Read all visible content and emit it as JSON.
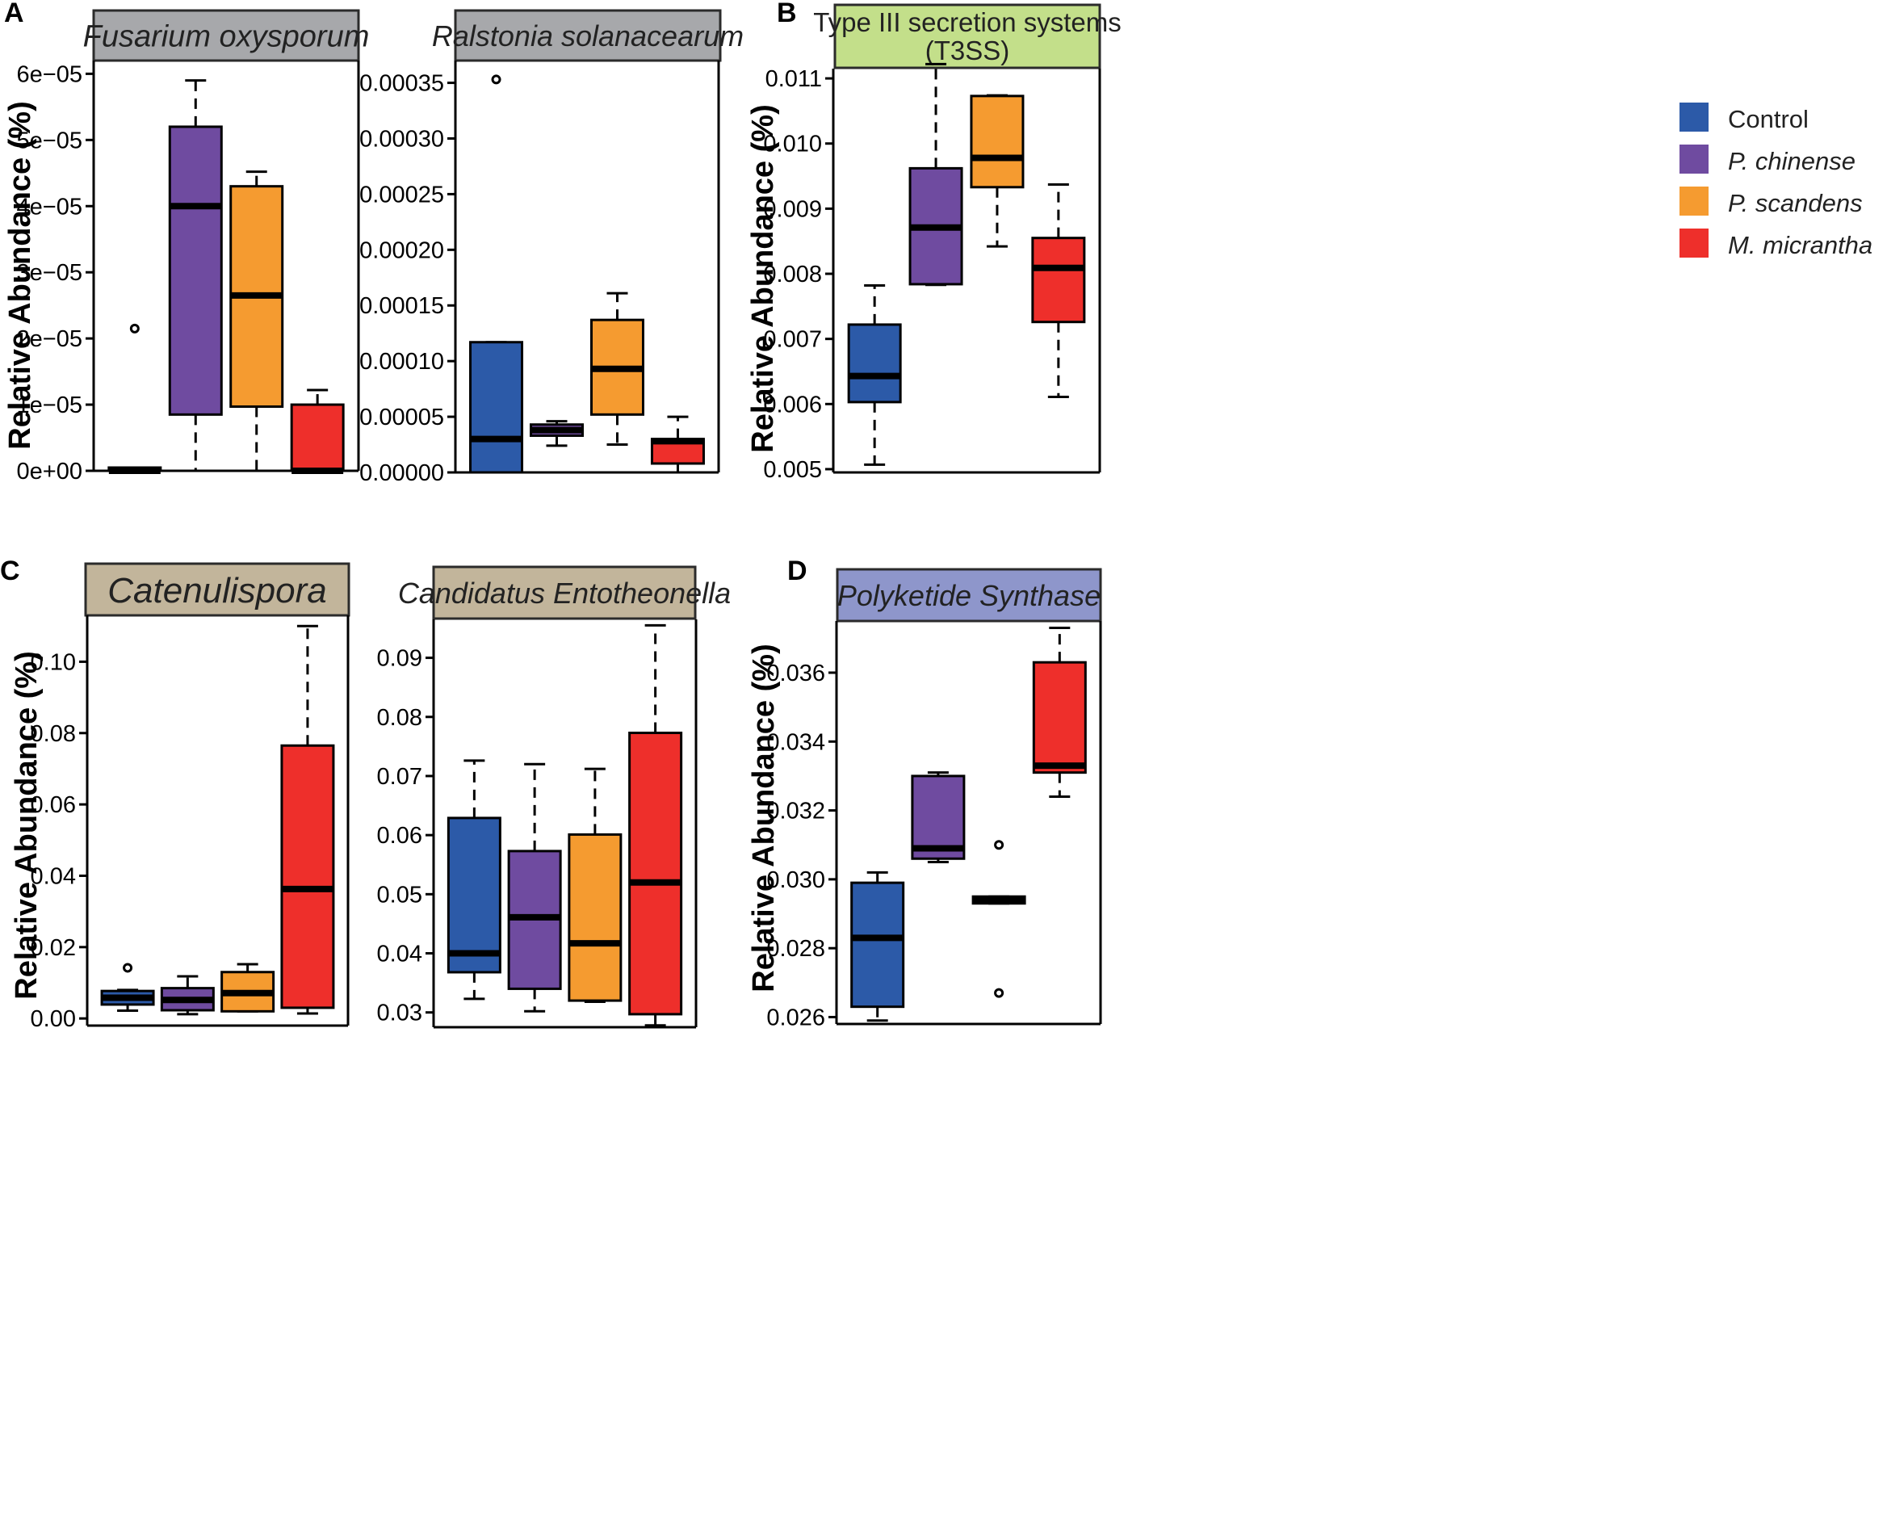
{
  "colors": {
    "Control": "#2c5aa8",
    "P. chinense": "#6f4ba0",
    "P. scandens": "#f59b30",
    "M. micrantha": "#ee2f2b"
  },
  "legend": [
    {
      "label": "Control",
      "color": "#2c5aa8",
      "italic": false
    },
    {
      "label": "P. chinense",
      "color": "#6f4ba0",
      "italic": true
    },
    {
      "label": "P. scandens",
      "color": "#f59b30",
      "italic": true
    },
    {
      "label": "M. micrantha",
      "color": "#ee2f2b",
      "italic": true
    }
  ],
  "chart_data": [
    {
      "id": "fusarium",
      "type": "boxplot",
      "panel_label": "A",
      "title": [
        "Fusarium oxysporum"
      ],
      "title_italic": true,
      "title_bg": "#a7a8ab",
      "ylabel": "Relative Abundance (%)",
      "ylim": [
        0,
        6.2e-05
      ],
      "ticks": [
        0,
        1e-05,
        2e-05,
        3e-05,
        4e-05,
        5e-05,
        6e-05
      ],
      "tick_labels": [
        "0e+00",
        "1e−05",
        "2e−05",
        "3e−05",
        "4e−05",
        "5e−05",
        "6e−05"
      ],
      "groups": [
        "Control",
        "P. chinense",
        "P. scandens",
        "M. micrantha"
      ],
      "boxes": [
        {
          "group": "Control",
          "wlo": 0,
          "q1": 0,
          "med": 0,
          "q3": 0,
          "whi": 0,
          "out": [
            2.15e-05
          ]
        },
        {
          "group": "P. chinense",
          "wlo": 0,
          "q1": 8.5e-06,
          "med": 4e-05,
          "q3": 5.2e-05,
          "whi": 5.9e-05,
          "out": []
        },
        {
          "group": "P. scandens",
          "wlo": 0,
          "q1": 9.7e-06,
          "med": 2.65e-05,
          "q3": 4.3e-05,
          "whi": 4.52e-05,
          "out": []
        },
        {
          "group": "M. micrantha",
          "wlo": 0,
          "q1": 0,
          "med": 0,
          "q3": 1e-05,
          "whi": 1.22e-05,
          "out": []
        }
      ]
    },
    {
      "id": "ralstonia",
      "type": "boxplot",
      "panel_label": "",
      "title": [
        "Ralstonia solanacearum"
      ],
      "title_italic": true,
      "title_bg": "#a7a8ab",
      "ylabel": "",
      "ylim": [
        0,
        0.00037
      ],
      "ticks": [
        0,
        5e-05,
        0.0001,
        0.00015,
        0.0002,
        0.00025,
        0.0003,
        0.00035
      ],
      "tick_labels": [
        "0.00000",
        "0.00005",
        "0.00010",
        "0.00015",
        "0.00020",
        "0.00025",
        "0.00030",
        "0.00035"
      ],
      "groups": [
        "Control",
        "P. chinense",
        "P. scandens",
        "M. micrantha"
      ],
      "boxes": [
        {
          "group": "Control",
          "wlo": 0,
          "q1": 0,
          "med": 3e-05,
          "q3": 0.000117,
          "whi": 0.000117,
          "out": [
            0.000353
          ]
        },
        {
          "group": "P. chinense",
          "wlo": 2.4e-05,
          "q1": 3.3e-05,
          "med": 3.8e-05,
          "q3": 4.3e-05,
          "whi": 4.6e-05,
          "out": []
        },
        {
          "group": "P. scandens",
          "wlo": 2.5e-05,
          "q1": 5.2e-05,
          "med": 9.3e-05,
          "q3": 0.000137,
          "whi": 0.000161,
          "out": []
        },
        {
          "group": "M. micrantha",
          "wlo": 0,
          "q1": 8e-06,
          "med": 2.8e-05,
          "q3": 3e-05,
          "whi": 5e-05,
          "out": []
        }
      ]
    },
    {
      "id": "t3ss",
      "type": "boxplot",
      "panel_label": "B",
      "title": [
        "Type III secretion systems",
        "(T3SS)"
      ],
      "title_italic": false,
      "title_bg": "#c3df8a",
      "ylabel": "Relative Abundance (%)",
      "ylim": [
        0.00495,
        0.01115
      ],
      "ticks": [
        0.005,
        0.006,
        0.007,
        0.008,
        0.009,
        0.01,
        0.011
      ],
      "tick_labels": [
        "0.005",
        "0.006",
        "0.007",
        "0.008",
        "0.009",
        "0.010",
        "0.011"
      ],
      "groups": [
        "Control",
        "P. chinense",
        "P. scandens",
        "M. micrantha"
      ],
      "boxes": [
        {
          "group": "Control",
          "wlo": 0.00507,
          "q1": 0.00603,
          "med": 0.00643,
          "q3": 0.00722,
          "whi": 0.00782,
          "out": []
        },
        {
          "group": "P. chinense",
          "wlo": 0.00783,
          "q1": 0.00784,
          "med": 0.00871,
          "q3": 0.00962,
          "whi": 0.01122,
          "out": []
        },
        {
          "group": "P. scandens",
          "wlo": 0.00842,
          "q1": 0.00933,
          "med": 0.00978,
          "q3": 0.01073,
          "whi": 0.01074,
          "out": []
        },
        {
          "group": "M. micrantha",
          "wlo": 0.00611,
          "q1": 0.00726,
          "med": 0.00809,
          "q3": 0.00855,
          "whi": 0.00937,
          "out": []
        }
      ]
    },
    {
      "id": "catenulispora",
      "type": "boxplot",
      "panel_label": "C",
      "title": [
        "Catenulispora"
      ],
      "title_italic": true,
      "title_bg": "#c2b59b",
      "ylabel": "Relative Abundance (%)",
      "ylim": [
        -0.002,
        0.113
      ],
      "ticks": [
        0,
        0.02,
        0.04,
        0.06,
        0.08,
        0.1
      ],
      "tick_labels": [
        "0.00",
        "0.02",
        "0.04",
        "0.06",
        "0.08",
        "0.10"
      ],
      "groups": [
        "Control",
        "P. chinense",
        "P. scandens",
        "M. micrantha"
      ],
      "boxes": [
        {
          "group": "Control",
          "wlo": 0.0022,
          "q1": 0.0039,
          "med": 0.0058,
          "q3": 0.0077,
          "whi": 0.008,
          "out": [
            0.0142
          ]
        },
        {
          "group": "P. chinense",
          "wlo": 0.0012,
          "q1": 0.0023,
          "med": 0.0052,
          "q3": 0.0085,
          "whi": 0.0118,
          "out": []
        },
        {
          "group": "P. scandens",
          "wlo": 0.002,
          "q1": 0.002,
          "med": 0.0071,
          "q3": 0.013,
          "whi": 0.0152,
          "out": []
        },
        {
          "group": "M. micrantha",
          "wlo": 0.0014,
          "q1": 0.003,
          "med": 0.0363,
          "q3": 0.0765,
          "whi": 0.11,
          "out": []
        }
      ]
    },
    {
      "id": "entotheonella",
      "type": "boxplot",
      "panel_label": "",
      "title": [
        "Candidatus Entotheonella"
      ],
      "title_italic": true,
      "title_bg": "#c2b59b",
      "ylabel": "",
      "ylim": [
        0.0275,
        0.0965
      ],
      "ticks": [
        0.03,
        0.04,
        0.05,
        0.06,
        0.07,
        0.08,
        0.09
      ],
      "tick_labels": [
        "0.03",
        "0.04",
        "0.05",
        "0.06",
        "0.07",
        "0.08",
        "0.09"
      ],
      "groups": [
        "Control",
        "P. chinense",
        "P. scandens",
        "M. micrantha"
      ],
      "boxes": [
        {
          "group": "Control",
          "wlo": 0.0323,
          "q1": 0.0368,
          "med": 0.04,
          "q3": 0.0629,
          "whi": 0.0726,
          "out": []
        },
        {
          "group": "P. chinense",
          "wlo": 0.0302,
          "q1": 0.034,
          "med": 0.0461,
          "q3": 0.0573,
          "whi": 0.072,
          "out": []
        },
        {
          "group": "P. scandens",
          "wlo": 0.0318,
          "q1": 0.032,
          "med": 0.0417,
          "q3": 0.0601,
          "whi": 0.0712,
          "out": []
        },
        {
          "group": "M. micrantha",
          "wlo": 0.0278,
          "q1": 0.0297,
          "med": 0.052,
          "q3": 0.0773,
          "whi": 0.0955,
          "out": []
        }
      ]
    },
    {
      "id": "pks",
      "type": "boxplot",
      "panel_label": "D",
      "title": [
        "Polyketide Synthase"
      ],
      "title_italic": true,
      "title_bg": "#8e96cb",
      "ylabel": "Relative Abundance (%)",
      "ylim": [
        0.0258,
        0.0375
      ],
      "ticks": [
        0.026,
        0.028,
        0.03,
        0.032,
        0.034,
        0.036
      ],
      "tick_labels": [
        "0.026",
        "0.028",
        "0.030",
        "0.032",
        "0.034",
        "0.036"
      ],
      "groups": [
        "Control",
        "P. chinense",
        "P. scandens",
        "M. micrantha"
      ],
      "boxes": [
        {
          "group": "Control",
          "wlo": 0.0259,
          "q1": 0.0263,
          "med": 0.0283,
          "q3": 0.0299,
          "whi": 0.0302,
          "out": []
        },
        {
          "group": "P. chinense",
          "wlo": 0.0305,
          "q1": 0.0306,
          "med": 0.0309,
          "q3": 0.033,
          "whi": 0.0331,
          "out": []
        },
        {
          "group": "P. scandens",
          "wlo": 0.0293,
          "q1": 0.0293,
          "med": 0.0294,
          "q3": 0.0295,
          "whi": 0.0295,
          "out": [
            0.031,
            0.0267
          ]
        },
        {
          "group": "M. micrantha",
          "wlo": 0.0324,
          "q1": 0.0331,
          "med": 0.0333,
          "q3": 0.0363,
          "whi": 0.0373,
          "out": []
        }
      ]
    }
  ]
}
